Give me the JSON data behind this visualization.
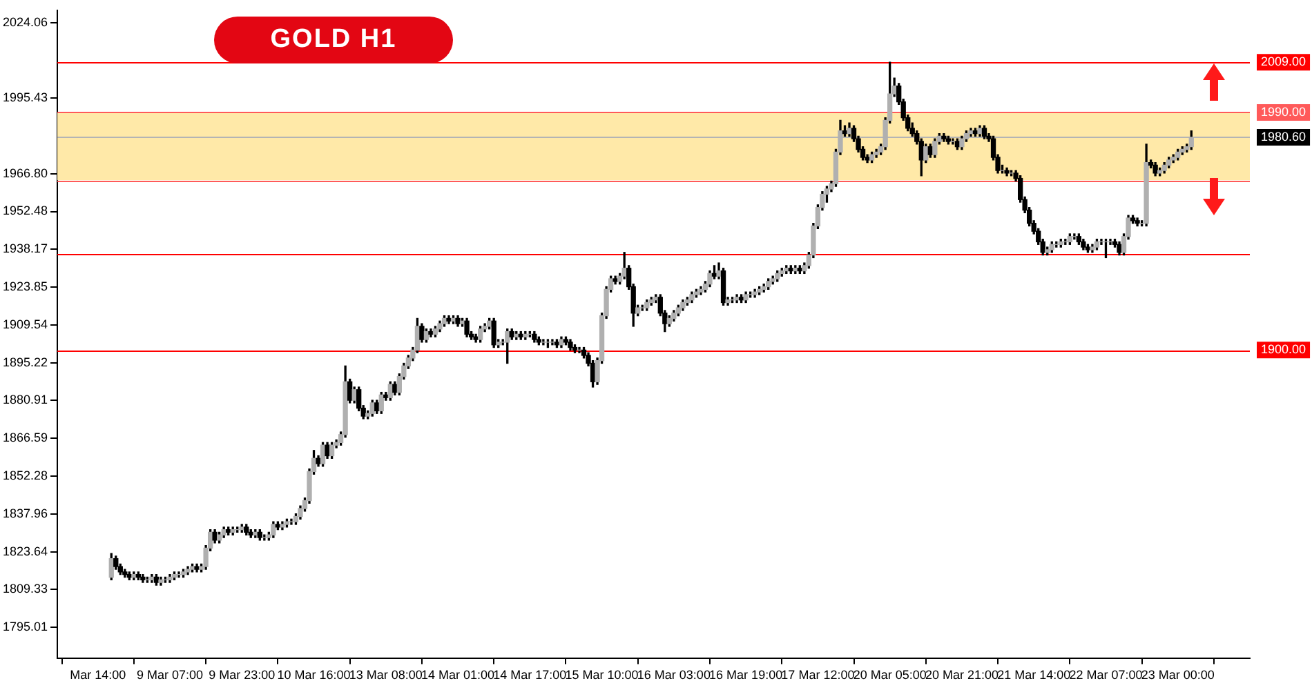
{
  "chart_data": {
    "type": "candlestick",
    "title": "GOLD H1",
    "categories": [
      "Mar 14:00",
      null,
      null,
      null,
      null,
      null,
      null,
      null,
      null,
      null,
      null,
      null,
      null,
      null,
      null,
      null,
      "9 Mar 07:00",
      null,
      null,
      null,
      null,
      null,
      null,
      null,
      null,
      null,
      null,
      null,
      null,
      null,
      null,
      null,
      "9 Mar 23:00",
      null,
      null,
      null,
      null,
      null,
      null,
      null,
      null,
      null,
      null,
      null,
      null,
      null,
      null,
      null,
      "10 Mar 16:00",
      null,
      null,
      null,
      null,
      null,
      null,
      null,
      null,
      null,
      null,
      null,
      null,
      null,
      null,
      null,
      "13 Mar 08:00",
      null,
      null,
      null,
      null,
      null,
      null,
      null,
      null,
      null,
      null,
      null,
      null,
      null,
      null,
      null,
      "14 Mar 01:00",
      null,
      null,
      null,
      null,
      null,
      null,
      null,
      null,
      null,
      null,
      null,
      null,
      null,
      null,
      null,
      "14 Mar 17:00",
      null,
      null,
      null,
      null,
      null,
      null,
      null,
      null,
      null,
      null,
      null,
      null,
      null,
      null,
      null,
      "15 Mar 10:00",
      null,
      null,
      null,
      null,
      null,
      null,
      null,
      null,
      null,
      null,
      null,
      null,
      null,
      null,
      null,
      "16 Mar 03:00",
      null,
      null,
      null,
      null,
      null,
      null,
      null,
      null,
      null,
      null,
      null,
      null,
      null,
      null,
      null,
      "16 Mar 19:00",
      null,
      null,
      null,
      null,
      null,
      null,
      null,
      null,
      null,
      null,
      null,
      null,
      null,
      null,
      null,
      "17 Mar 12:00",
      null,
      null,
      null,
      null,
      null,
      null,
      null,
      null,
      null,
      null,
      null,
      null,
      null,
      null,
      null,
      "20 Mar 05:00",
      null,
      null,
      null,
      null,
      null,
      null,
      null,
      null,
      null,
      null,
      null,
      null,
      null,
      null,
      null,
      "20 Mar 21:00",
      null,
      null,
      null,
      null,
      null,
      null,
      null,
      null,
      null,
      null,
      null,
      null,
      null,
      null,
      null,
      "21 Mar 14:00",
      null,
      null,
      null,
      null,
      null,
      null,
      null,
      null,
      null,
      null,
      null,
      null,
      null,
      null,
      null,
      "22 Mar 07:00",
      null,
      null,
      null,
      null,
      null,
      null,
      null,
      null,
      null,
      null,
      null,
      null,
      null,
      null,
      null,
      "23 Mar 00:00",
      null,
      null,
      null
    ],
    "color": "#000000",
    "colors": [
      null,
      null,
      null,
      "#b0b0b0",
      "#000000",
      "#000000",
      "#000000",
      "#000000",
      "#b0b0b0",
      "#000000",
      "#000000",
      "#b0b0b0",
      "#b0b0b0",
      "#000000",
      "#b0b0b0",
      "#b0b0b0",
      "#b0b0b0",
      "#b0b0b0",
      "#b0b0b0",
      "#b0b0b0",
      "#b0b0b0",
      "#b0b0b0",
      "#000000",
      "#b0b0b0",
      "#b0b0b0",
      "#b0b0b0",
      "#000000",
      "#b0b0b0",
      "#b0b0b0",
      "#000000",
      "#b0b0b0",
      "#b0b0b0",
      "#b0b0b0",
      "#000000",
      "#000000",
      "#b0b0b0",
      "#000000",
      "#b0b0b0",
      "#b0b0b0",
      "#b0b0b0",
      "#000000",
      "#b0b0b0",
      "#b0b0b0",
      "#b0b0b0",
      "#b0b0b0",
      "#b0b0b0",
      "#b0b0b0",
      "#b0b0b0",
      "#b0b0b0",
      "#000000",
      "#b0b0b0",
      "#000000",
      "#b0b0b0",
      "#b0b0b0",
      "#b0b0b0",
      "#b0b0b0",
      "#000000",
      "#b0b0b0",
      "#000000",
      "#000000",
      "#b0b0b0",
      "#b0b0b0",
      "#000000",
      "#b0b0b0",
      "#000000",
      "#b0b0b0",
      "#000000",
      "#b0b0b0",
      "#b0b0b0",
      "#b0b0b0",
      "#b0b0b0",
      "#b0b0b0",
      "#000000",
      "#b0b0b0",
      "#000000",
      "#b0b0b0",
      "#b0b0b0",
      "#b0b0b0",
      "#000000",
      "#b0b0b0",
      "#000000",
      "#b0b0b0",
      "#000000",
      "#000000",
      "#000000",
      "#b0b0b0",
      "#b0b0b0",
      "#b0b0b0",
      "#000000",
      "#b0b0b0",
      "#b0b0b0",
      "#b0b0b0",
      "#000000",
      "#b0b0b0",
      "#000000",
      "#b0b0b0",
      "#b0b0b0",
      "#000000",
      "#000000",
      "#b0b0b0",
      "#b0b0b0",
      "#b0b0b0",
      "#000000",
      "#b0b0b0",
      "#000000",
      "#000000",
      "#000000",
      "#b0b0b0",
      "#000000",
      "#000000",
      "#000000",
      "#b0b0b0",
      "#b0b0b0",
      "#b0b0b0",
      "#b0b0b0",
      "#000000",
      "#b0b0b0",
      "#b0b0b0",
      "#000000",
      "#000000",
      "#b0b0b0",
      "#b0b0b0",
      "#b0b0b0",
      "#b0b0b0",
      "#b0b0b0",
      "#000000",
      "#000000",
      "#b0b0b0",
      "#b0b0b0",
      "#b0b0b0",
      "#b0b0b0",
      "#b0b0b0",
      "#b0b0b0",
      "#b0b0b0",
      "#b0b0b0",
      "#b0b0b0",
      "#b0b0b0",
      "#000000",
      "#b0b0b0",
      "#000000",
      "#b0b0b0",
      "#b0b0b0",
      "#b0b0b0",
      "#000000",
      "#b0b0b0",
      "#b0b0b0",
      "#b0b0b0",
      "#b0b0b0",
      "#b0b0b0",
      "#b0b0b0",
      "#b0b0b0",
      "#b0b0b0",
      "#b0b0b0",
      "#b0b0b0",
      "#000000",
      "#b0b0b0",
      "#000000",
      "#b0b0b0",
      "#b0b0b0",
      "#b0b0b0",
      "#b0b0b0",
      "#b0b0b0",
      "#b0b0b0",
      "#b0b0b0",
      "#b0b0b0",
      "#b0b0b0",
      "#000000",
      "#b0b0b0",
      "#000000",
      "#000000",
      "#000000",
      "#000000",
      "#b0b0b0",
      "#b0b0b0",
      "#b0b0b0",
      "#b0b0b0",
      "#b0b0b0",
      "#b0b0b0",
      "#000000",
      "#000000",
      "#000000",
      "#000000",
      "#000000",
      "#000000",
      "#b0b0b0",
      "#000000",
      "#b0b0b0",
      "#b0b0b0",
      "#000000",
      "#000000",
      "#b0b0b0",
      "#000000",
      "#b0b0b0",
      "#b0b0b0",
      "#b0b0b0",
      "#000000",
      "#b0b0b0",
      "#000000",
      "#000000",
      "#000000",
      "#000000",
      "#b0b0b0",
      "#000000",
      "#b0b0b0",
      "#000000",
      "#000000",
      "#000000",
      "#000000",
      "#000000",
      "#000000",
      "#000000",
      "#b0b0b0",
      "#b0b0b0",
      "#b0b0b0",
      "#b0b0b0",
      "#b0b0b0",
      "#b0b0b0",
      "#b0b0b0",
      "#000000",
      "#000000",
      "#000000",
      "#b0b0b0",
      "#b0b0b0",
      "#b0b0b0",
      "#b0b0b0",
      "#b0b0b0",
      "#000000",
      "#000000",
      "#b0b0b0",
      "#b0b0b0",
      "#000000",
      "#000000",
      "#b0b0b0",
      "#b0b0b0",
      "#000000",
      "#000000",
      "#b0b0b0",
      "#b0b0b0",
      "#b0b0b0",
      "#b0b0b0",
      "#b0b0b0",
      "#b0b0b0",
      "#b0b0b0",
      "#b0b0b0"
    ],
    "ohlc": [
      null,
      null,
      null,
      [
        1814,
        1823,
        1813,
        1821
      ],
      [
        1821,
        1822,
        1817,
        1818
      ],
      [
        1818,
        1819,
        1815,
        1816
      ],
      [
        1816,
        1817,
        1814,
        1815
      ],
      [
        1815,
        1816,
        1813,
        1814
      ],
      [
        1814,
        1816,
        1813,
        1815
      ],
      [
        1815,
        1816,
        1813,
        1814
      ],
      [
        1814,
        1815,
        1812,
        1813
      ],
      [
        1813,
        1814,
        1812,
        1813
      ],
      [
        1813,
        1815,
        1812,
        1814
      ],
      [
        1814,
        1815,
        1811,
        1812
      ],
      [
        1812,
        1814,
        1811,
        1813
      ],
      [
        1813,
        1814,
        1812,
        1813
      ],
      [
        1813,
        1815,
        1812,
        1814
      ],
      [
        1814,
        1816,
        1813,
        1815
      ],
      [
        1815,
        1816,
        1814,
        1815
      ],
      [
        1815,
        1817,
        1814,
        1816
      ],
      [
        1816,
        1818,
        1815,
        1817
      ],
      [
        1817,
        1819,
        1816,
        1818
      ],
      [
        1818,
        1819,
        1816,
        1817
      ],
      [
        1817,
        1819,
        1816,
        1818
      ],
      [
        1818,
        1826,
        1817,
        1825
      ],
      [
        1825,
        1832,
        1824,
        1831
      ],
      [
        1831,
        1832,
        1827,
        1828
      ],
      [
        1828,
        1831,
        1827,
        1830
      ],
      [
        1830,
        1833,
        1829,
        1832
      ],
      [
        1832,
        1833,
        1830,
        1831
      ],
      [
        1831,
        1833,
        1830,
        1832
      ],
      [
        1832,
        1833,
        1831,
        1832
      ],
      [
        1832,
        1834,
        1831,
        1833
      ],
      [
        1833,
        1834,
        1830,
        1831
      ],
      [
        1831,
        1832,
        1829,
        1830
      ],
      [
        1830,
        1832,
        1829,
        1831
      ],
      [
        1831,
        1832,
        1828,
        1829
      ],
      [
        1829,
        1830,
        1828,
        1829
      ],
      [
        1829,
        1831,
        1828,
        1830
      ],
      [
        1830,
        1835,
        1829,
        1834
      ],
      [
        1834,
        1835,
        1832,
        1833
      ],
      [
        1833,
        1835,
        1832,
        1834
      ],
      [
        1834,
        1836,
        1833,
        1835
      ],
      [
        1835,
        1836,
        1834,
        1835
      ],
      [
        1835,
        1838,
        1834,
        1837
      ],
      [
        1837,
        1841,
        1836,
        1840
      ],
      [
        1840,
        1844,
        1839,
        1843
      ],
      [
        1843,
        1855,
        1842,
        1854
      ],
      [
        1854,
        1862,
        1853,
        1859
      ],
      [
        1859,
        1860,
        1856,
        1857
      ],
      [
        1857,
        1865,
        1856,
        1864
      ],
      [
        1864,
        1865,
        1859,
        1860
      ],
      [
        1860,
        1865,
        1859,
        1864
      ],
      [
        1864,
        1866,
        1863,
        1865
      ],
      [
        1865,
        1869,
        1864,
        1868
      ],
      [
        1868,
        1894,
        1867,
        1888
      ],
      [
        1888,
        1889,
        1880,
        1881
      ],
      [
        1881,
        1886,
        1880,
        1885
      ],
      [
        1885,
        1886,
        1877,
        1878
      ],
      [
        1878,
        1879,
        1874,
        1875
      ],
      [
        1875,
        1877,
        1874,
        1876
      ],
      [
        1876,
        1881,
        1875,
        1880
      ],
      [
        1880,
        1881,
        1876,
        1877
      ],
      [
        1877,
        1884,
        1876,
        1883
      ],
      [
        1883,
        1884,
        1881,
        1882
      ],
      [
        1882,
        1888,
        1881,
        1887
      ],
      [
        1887,
        1888,
        1883,
        1884
      ],
      [
        1884,
        1891,
        1883,
        1890
      ],
      [
        1890,
        1895,
        1889,
        1894
      ],
      [
        1894,
        1898,
        1893,
        1897
      ],
      [
        1897,
        1901,
        1896,
        1900
      ],
      [
        1900,
        1912,
        1899,
        1909
      ],
      [
        1909,
        1910,
        1903,
        1904
      ],
      [
        1904,
        1908,
        1903,
        1907
      ],
      [
        1907,
        1908,
        1905,
        1906
      ],
      [
        1906,
        1909,
        1905,
        1908
      ],
      [
        1908,
        1911,
        1907,
        1910
      ],
      [
        1910,
        1913,
        1909,
        1912
      ],
      [
        1912,
        1913,
        1910,
        1911
      ],
      [
        1911,
        1913,
        1910,
        1912
      ],
      [
        1912,
        1913,
        1909,
        1910
      ],
      [
        1910,
        1912,
        1909,
        1911
      ],
      [
        1911,
        1912,
        1905,
        1906
      ],
      [
        1906,
        1907,
        1904,
        1905
      ],
      [
        1905,
        1906,
        1903,
        1904
      ],
      [
        1904,
        1909,
        1903,
        1908
      ],
      [
        1908,
        1910,
        1907,
        1909
      ],
      [
        1909,
        1912,
        1908,
        1911
      ],
      [
        1911,
        1912,
        1901,
        1902
      ],
      [
        1902,
        1904,
        1901,
        1903
      ],
      [
        1903,
        1904,
        1902,
        1903
      ],
      [
        1903,
        1908,
        1895,
        1907
      ],
      [
        1907,
        1908,
        1904,
        1905
      ],
      [
        1905,
        1907,
        1904,
        1906
      ],
      [
        1906,
        1907,
        1904,
        1905
      ],
      [
        1905,
        1907,
        1904,
        1906
      ],
      [
        1906,
        1907,
        1905,
        1906
      ],
      [
        1906,
        1907,
        1903,
        1904
      ],
      [
        1904,
        1905,
        1902,
        1903
      ],
      [
        1903,
        1904,
        1902,
        1903
      ],
      [
        1903,
        1904,
        1901,
        1903
      ],
      [
        1903,
        1904,
        1902,
        1903
      ],
      [
        1903,
        1904,
        1901,
        1902
      ],
      [
        1902,
        1905,
        1901,
        1904
      ],
      [
        1904,
        1905,
        1902,
        1903
      ],
      [
        1903,
        1904,
        1900,
        1901
      ],
      [
        1901,
        1902,
        1899,
        1900
      ],
      [
        1900,
        1901,
        1899,
        1900
      ],
      [
        1900,
        1901,
        1897,
        1898
      ],
      [
        1898,
        1899,
        1894,
        1895
      ],
      [
        1895,
        1896,
        1886,
        1888
      ],
      [
        1888,
        1897,
        1887,
        1896
      ],
      [
        1896,
        1914,
        1895,
        1913
      ],
      [
        1913,
        1924,
        1912,
        1923
      ],
      [
        1923,
        1928,
        1922,
        1927
      ],
      [
        1927,
        1928,
        1925,
        1926
      ],
      [
        1926,
        1929,
        1925,
        1928
      ],
      [
        1928,
        1937,
        1927,
        1931
      ],
      [
        1931,
        1932,
        1923,
        1924
      ],
      [
        1924,
        1925,
        1909,
        1914
      ],
      [
        1914,
        1917,
        1913,
        1916
      ],
      [
        1916,
        1917,
        1915,
        1916
      ],
      [
        1916,
        1919,
        1915,
        1918
      ],
      [
        1918,
        1920,
        1917,
        1919
      ],
      [
        1919,
        1921,
        1918,
        1920
      ],
      [
        1920,
        1921,
        1913,
        1914
      ],
      [
        1914,
        1915,
        1907,
        1910
      ],
      [
        1910,
        1913,
        1909,
        1912
      ],
      [
        1912,
        1915,
        1911,
        1914
      ],
      [
        1914,
        1917,
        1913,
        1916
      ],
      [
        1916,
        1919,
        1915,
        1918
      ],
      [
        1918,
        1920,
        1917,
        1919
      ],
      [
        1919,
        1922,
        1918,
        1921
      ],
      [
        1921,
        1923,
        1920,
        1922
      ],
      [
        1922,
        1924,
        1921,
        1923
      ],
      [
        1923,
        1926,
        1922,
        1925
      ],
      [
        1925,
        1930,
        1924,
        1929
      ],
      [
        1929,
        1932,
        1927,
        1928
      ],
      [
        1928,
        1933,
        1927,
        1930
      ],
      [
        1930,
        1931,
        1917,
        1918
      ],
      [
        1918,
        1920,
        1917,
        1919
      ],
      [
        1919,
        1920,
        1918,
        1919
      ],
      [
        1919,
        1921,
        1918,
        1920
      ],
      [
        1920,
        1921,
        1918,
        1919
      ],
      [
        1919,
        1922,
        1918,
        1921
      ],
      [
        1921,
        1922,
        1920,
        1921
      ],
      [
        1921,
        1923,
        1920,
        1922
      ],
      [
        1922,
        1924,
        1921,
        1923
      ],
      [
        1923,
        1925,
        1922,
        1924
      ],
      [
        1924,
        1927,
        1923,
        1926
      ],
      [
        1926,
        1928,
        1925,
        1927
      ],
      [
        1927,
        1930,
        1926,
        1929
      ],
      [
        1929,
        1931,
        1928,
        1930
      ],
      [
        1930,
        1932,
        1929,
        1931
      ],
      [
        1931,
        1932,
        1929,
        1930
      ],
      [
        1930,
        1932,
        1929,
        1931
      ],
      [
        1931,
        1932,
        1929,
        1930
      ],
      [
        1930,
        1933,
        1929,
        1932
      ],
      [
        1932,
        1937,
        1931,
        1936
      ],
      [
        1936,
        1948,
        1935,
        1947
      ],
      [
        1947,
        1955,
        1946,
        1954
      ],
      [
        1954,
        1960,
        1953,
        1959
      ],
      [
        1959,
        1962,
        1956,
        1961
      ],
      [
        1961,
        1964,
        1960,
        1963
      ],
      [
        1963,
        1976,
        1962,
        1975
      ],
      [
        1975,
        1987,
        1974,
        1983
      ],
      [
        1983,
        1985,
        1981,
        1982
      ],
      [
        1982,
        1986,
        1981,
        1984
      ],
      [
        1984,
        1985,
        1979,
        1980
      ],
      [
        1980,
        1981,
        1975,
        1976
      ],
      [
        1976,
        1977,
        1972,
        1973
      ],
      [
        1973,
        1974,
        1971,
        1972
      ],
      [
        1972,
        1975,
        1971,
        1974
      ],
      [
        1974,
        1976,
        1973,
        1975
      ],
      [
        1975,
        1978,
        1974,
        1977
      ],
      [
        1977,
        1988,
        1976,
        1987
      ],
      [
        1987,
        2009,
        1986,
        1997
      ],
      [
        1997,
        2003,
        1996,
        2000
      ],
      [
        2000,
        2001,
        1993,
        1994
      ],
      [
        1994,
        1995,
        1987,
        1988
      ],
      [
        1988,
        1989,
        1983,
        1984
      ],
      [
        1984,
        1986,
        1981,
        1982
      ],
      [
        1982,
        1983,
        1978,
        1979
      ],
      [
        1979,
        1980,
        1966,
        1972
      ],
      [
        1972,
        1978,
        1971,
        1977
      ],
      [
        1977,
        1978,
        1973,
        1974
      ],
      [
        1974,
        1980,
        1973,
        1979
      ],
      [
        1979,
        1982,
        1978,
        1981
      ],
      [
        1981,
        1982,
        1979,
        1980
      ],
      [
        1980,
        1981,
        1978,
        1979
      ],
      [
        1979,
        1980,
        1978,
        1979
      ],
      [
        1979,
        1980,
        1976,
        1977
      ],
      [
        1977,
        1981,
        1976,
        1980
      ],
      [
        1980,
        1983,
        1979,
        1982
      ],
      [
        1982,
        1984,
        1981,
        1983
      ],
      [
        1983,
        1984,
        1981,
        1982
      ],
      [
        1982,
        1985,
        1981,
        1984
      ],
      [
        1984,
        1985,
        1980,
        1981
      ],
      [
        1981,
        1982,
        1979,
        1980
      ],
      [
        1980,
        1981,
        1972,
        1973
      ],
      [
        1973,
        1974,
        1967,
        1968
      ],
      [
        1968,
        1970,
        1967,
        1968
      ],
      [
        1968,
        1969,
        1966,
        1967
      ],
      [
        1967,
        1968,
        1966,
        1967
      ],
      [
        1967,
        1968,
        1964,
        1965
      ],
      [
        1965,
        1966,
        1956,
        1957
      ],
      [
        1957,
        1958,
        1952,
        1953
      ],
      [
        1953,
        1954,
        1947,
        1948
      ],
      [
        1948,
        1949,
        1944,
        1945
      ],
      [
        1945,
        1946,
        1940,
        1941
      ],
      [
        1941,
        1942,
        1936,
        1937
      ],
      [
        1937,
        1939,
        1936,
        1938
      ],
      [
        1938,
        1941,
        1937,
        1940
      ],
      [
        1940,
        1941,
        1939,
        1940
      ],
      [
        1940,
        1942,
        1939,
        1941
      ],
      [
        1941,
        1942,
        1940,
        1941
      ],
      [
        1941,
        1944,
        1940,
        1943
      ],
      [
        1943,
        1944,
        1942,
        1943
      ],
      [
        1943,
        1944,
        1940,
        1941
      ],
      [
        1941,
        1942,
        1938,
        1939
      ],
      [
        1939,
        1940,
        1937,
        1938
      ],
      [
        1938,
        1940,
        1937,
        1939
      ],
      [
        1939,
        1942,
        1938,
        1941
      ],
      [
        1941,
        1942,
        1940,
        1941
      ],
      [
        1941,
        1942,
        1935,
        1941
      ],
      [
        1941,
        1942,
        1940,
        1941
      ],
      [
        1941,
        1942,
        1939,
        1940
      ],
      [
        1940,
        1941,
        1936,
        1937
      ],
      [
        1937,
        1944,
        1936,
        1943
      ],
      [
        1943,
        1951,
        1942,
        1950
      ],
      [
        1950,
        1951,
        1948,
        1949
      ],
      [
        1949,
        1950,
        1947,
        1948
      ],
      [
        1948,
        1949,
        1947,
        1948
      ],
      [
        1948,
        1978,
        1947,
        1971
      ],
      [
        1971,
        1972,
        1969,
        1970
      ],
      [
        1970,
        1971,
        1966,
        1967
      ],
      [
        1967,
        1969,
        1966,
        1968
      ],
      [
        1968,
        1971,
        1967,
        1970
      ],
      [
        1970,
        1973,
        1969,
        1972
      ],
      [
        1972,
        1974,
        1971,
        1973
      ],
      [
        1973,
        1976,
        1972,
        1975
      ],
      [
        1975,
        1977,
        1974,
        1976
      ],
      [
        1976,
        1978,
        1975,
        1977
      ],
      [
        1977,
        1983,
        1976,
        1980.6
      ]
    ],
    "ylim": [
      1783.2,
      2028.7
    ],
    "yticks": [
      1795.01,
      1809.33,
      1823.64,
      1837.96,
      1852.28,
      1866.59,
      1880.91,
      1895.22,
      1909.54,
      1923.85,
      1938.17,
      1952.48,
      {
        "value": 1966.8,
        "label": "1966.80"
      },
      1995.43,
      2024.06
    ],
    "ref_lines": [
      {
        "axis": "y",
        "value": 2009,
        "label": "2009.00",
        "color": "#ff0000"
      },
      {
        "axis": "y",
        "value": 1990,
        "label": "1990.00",
        "color": "#ff5a5a"
      },
      {
        "axis": "y",
        "value": 1980.6,
        "label": "1980.60",
        "color": "#b4b4b4"
      },
      {
        "axis": "y",
        "value": 1964.3,
        "color": "#ff5a5a"
      },
      {
        "axis": "y",
        "value": 1936.4,
        "color": "#ff0000"
      },
      {
        "axis": "y",
        "value": 1900,
        "label": "1900.00",
        "color": "#ff0000"
      }
    ],
    "bands": [
      {
        "axis": "y",
        "from": 1964.3,
        "to": 1990,
        "color": "#ffe9a8"
      }
    ]
  }
}
